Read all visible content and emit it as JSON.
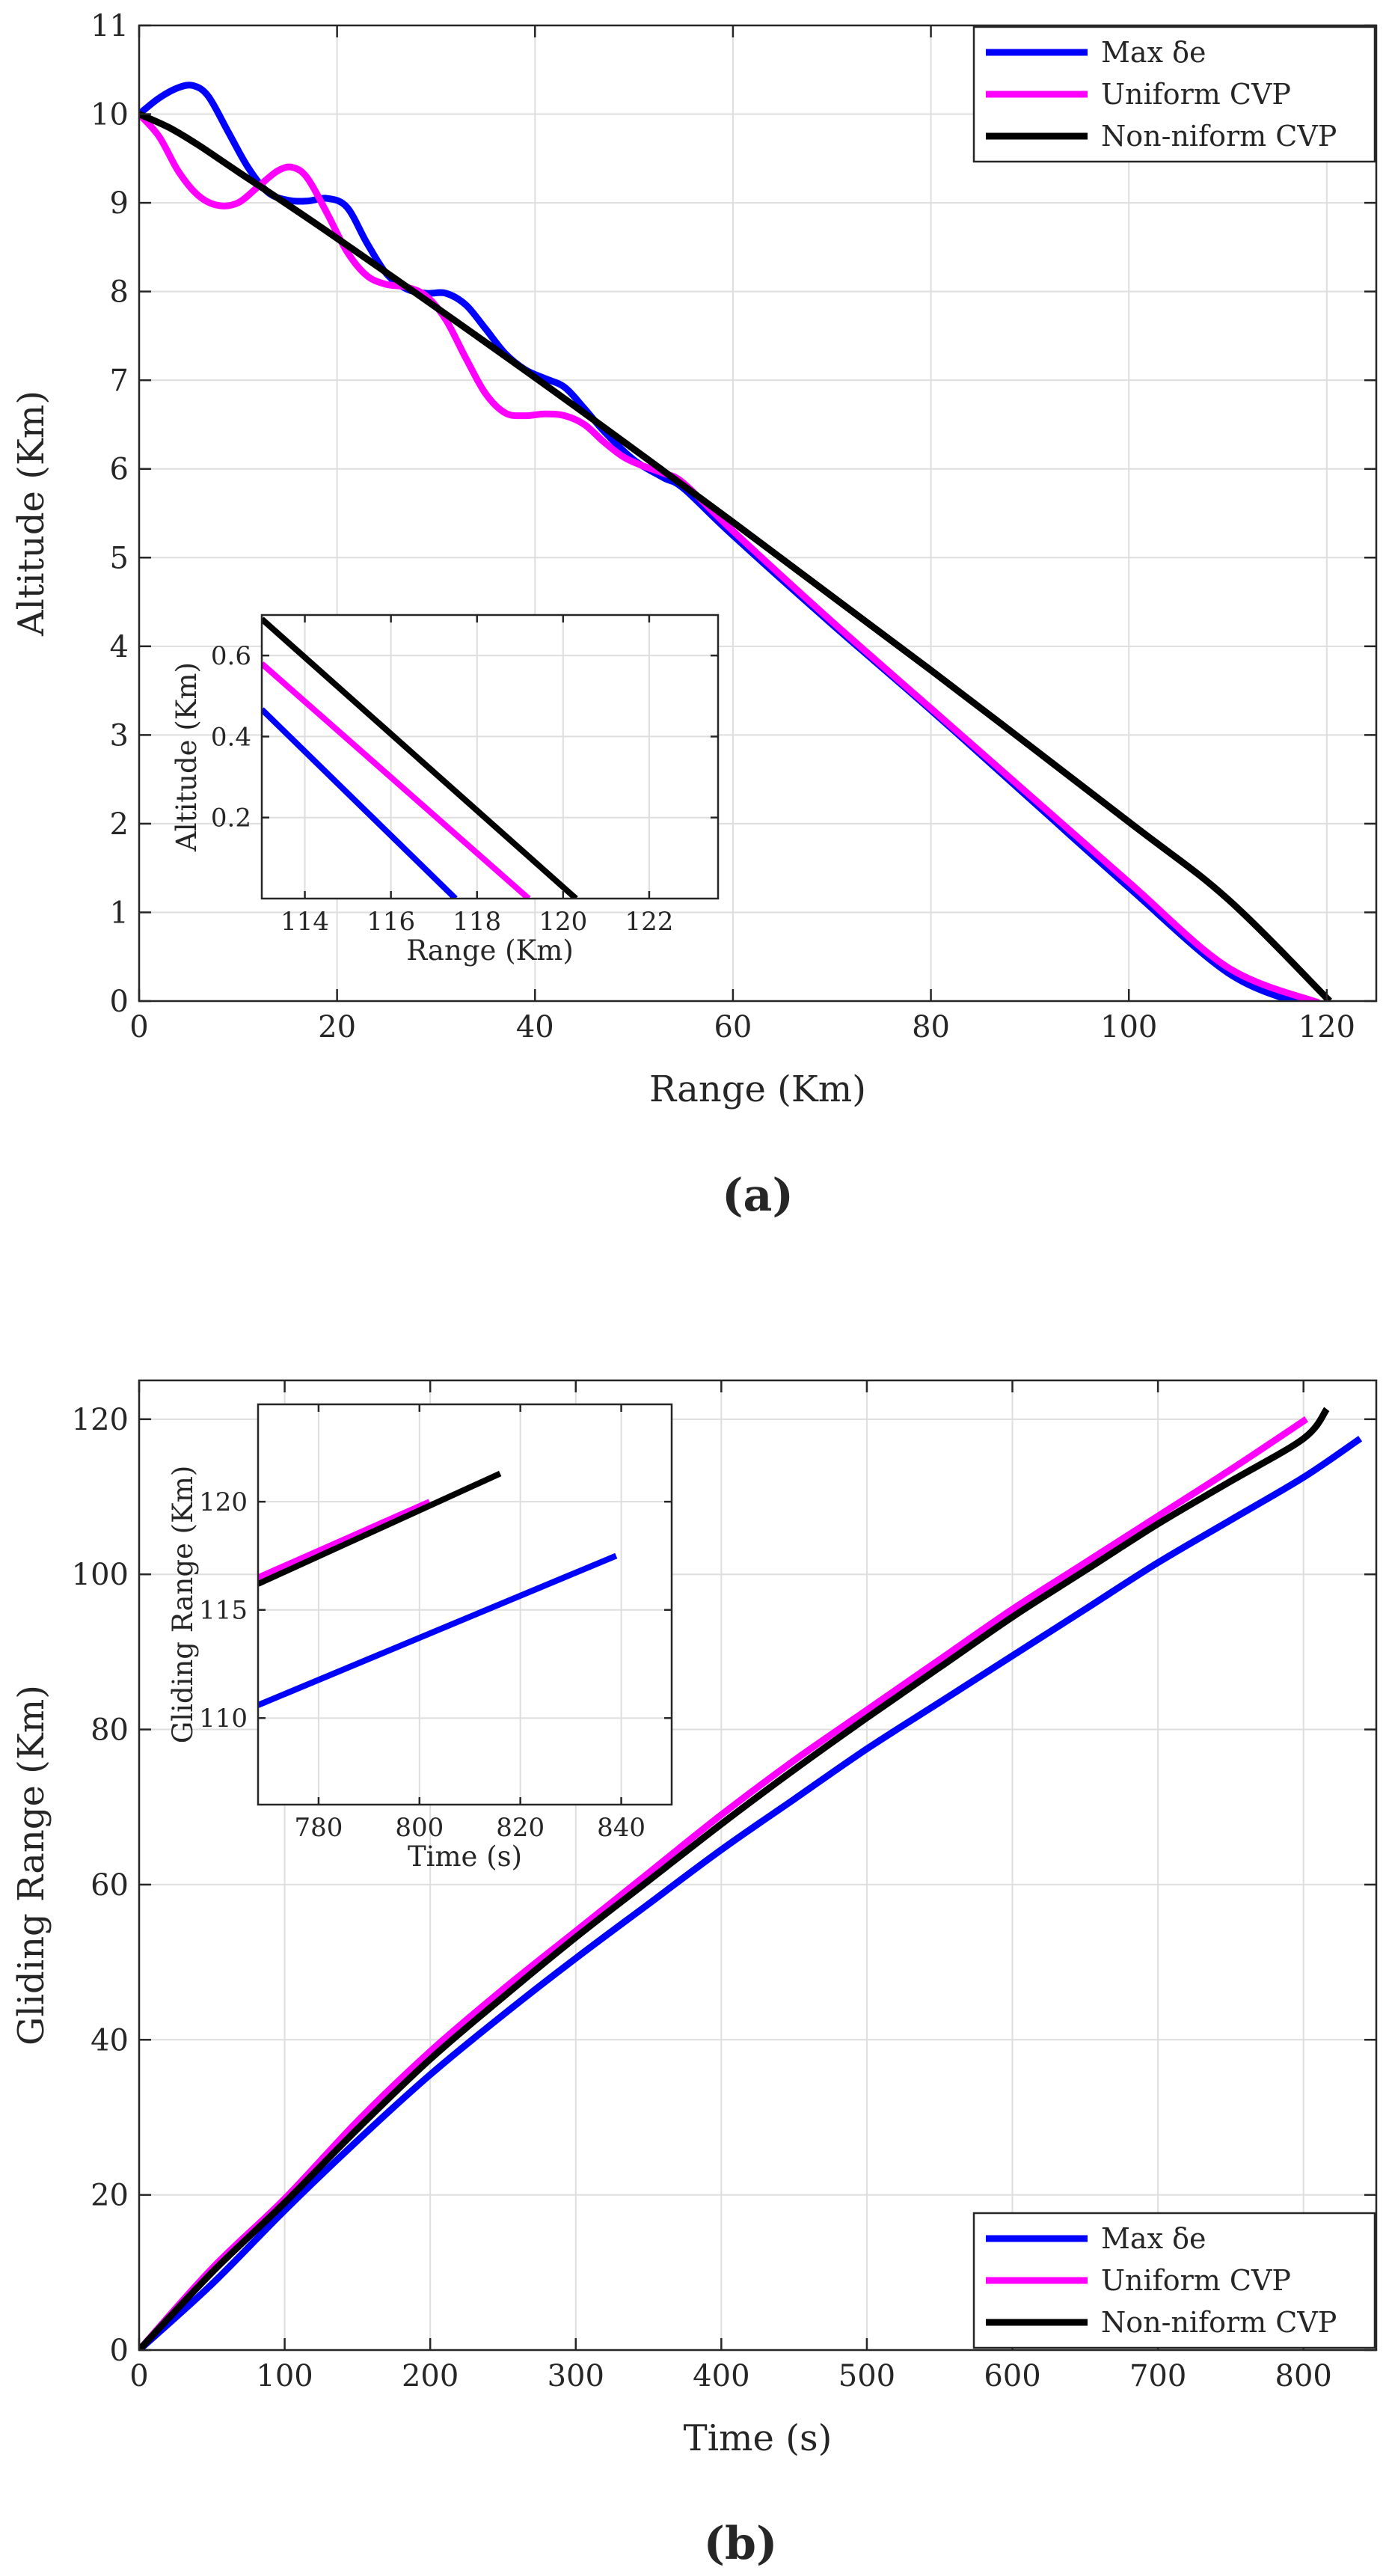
{
  "colors": {
    "series_blue": "#0000ff",
    "series_magenta": "#ff00ff",
    "series_black": "#000000"
  },
  "chart_data": [
    {
      "id": "a",
      "type": "line",
      "caption_label": "(a)",
      "xlabel": "Range (Km)",
      "ylabel": "Altitude (Km)",
      "xlim": [
        0,
        125
      ],
      "ylim": [
        0,
        11
      ],
      "xticks": [
        0,
        20,
        40,
        60,
        80,
        100,
        120
      ],
      "yticks": [
        0,
        1,
        2,
        3,
        4,
        5,
        6,
        7,
        8,
        9,
        10,
        11
      ],
      "grid": true,
      "legend_position": "top-right",
      "legend": [
        "Max δe",
        "Uniform CVP",
        "Non-niform CVP"
      ],
      "series": [
        {
          "name": "Max δe",
          "color": "#0000ff",
          "x": [
            0,
            2,
            4,
            5.5,
            7,
            9,
            11,
            13,
            15,
            17,
            19,
            21,
            23,
            25,
            27,
            29,
            31,
            33,
            35,
            37,
            39,
            41,
            43,
            45,
            47,
            50,
            53,
            55,
            60,
            70,
            80,
            90,
            100,
            110,
            117.5
          ],
          "y": [
            10,
            10.18,
            10.3,
            10.32,
            10.2,
            9.8,
            9.4,
            9.12,
            9.03,
            9.02,
            9.05,
            8.95,
            8.55,
            8.2,
            8.03,
            7.98,
            7.98,
            7.85,
            7.58,
            7.3,
            7.12,
            7.02,
            6.92,
            6.68,
            6.42,
            6.1,
            5.9,
            5.78,
            5.25,
            4.25,
            3.28,
            2.28,
            1.28,
            0.32,
            -0.04
          ]
        },
        {
          "name": "Uniform CVP",
          "color": "#ff00ff",
          "x": [
            0,
            2,
            4,
            6,
            8,
            10,
            12,
            14,
            15.5,
            17,
            19,
            21,
            23,
            25,
            27,
            29,
            31,
            33,
            35,
            37,
            39,
            41,
            43,
            45,
            47,
            49,
            51,
            53,
            55,
            60,
            70,
            80,
            90,
            100,
            110,
            119.2
          ],
          "y": [
            10,
            9.75,
            9.35,
            9.08,
            8.97,
            9.0,
            9.18,
            9.36,
            9.4,
            9.28,
            8.88,
            8.45,
            8.18,
            8.08,
            8.05,
            7.95,
            7.68,
            7.25,
            6.85,
            6.63,
            6.6,
            6.62,
            6.6,
            6.5,
            6.3,
            6.13,
            6.03,
            5.95,
            5.84,
            5.3,
            4.28,
            3.3,
            2.32,
            1.34,
            0.38,
            -0.02
          ]
        },
        {
          "name": "Non-niform CVP",
          "color": "#000000",
          "x": [
            0,
            3,
            6,
            10,
            20,
            40,
            60,
            80,
            100,
            110,
            120.3
          ],
          "y": [
            10,
            9.85,
            9.65,
            9.35,
            8.6,
            7.03,
            5.4,
            3.73,
            2.02,
            1.15,
            0
          ]
        }
      ],
      "inset": {
        "xlabel": "Range (Km)",
        "ylabel": "Altitude (Km)",
        "xlim": [
          113,
          123.6
        ],
        "ylim": [
          0,
          0.7
        ],
        "xticks": [
          114,
          116,
          118,
          120,
          122
        ],
        "yticks": [
          0.2,
          0.4,
          0.6
        ],
        "series": [
          {
            "name": "Max δe",
            "color": "#0000ff",
            "x": [
              113,
              117.5
            ],
            "y": [
              0.467,
              0
            ]
          },
          {
            "name": "Uniform CVP",
            "color": "#ff00ff",
            "x": [
              113,
              119.2
            ],
            "y": [
              0.58,
              0
            ]
          },
          {
            "name": "Non-niform CVP",
            "color": "#000000",
            "x": [
              113,
              120.3
            ],
            "y": [
              0.69,
              0
            ]
          }
        ]
      }
    },
    {
      "id": "b",
      "type": "line",
      "caption_label": "(b)",
      "xlabel": "Time (s)",
      "ylabel": "Gliding Range (Km)",
      "xlim": [
        0,
        850
      ],
      "ylim": [
        0,
        125
      ],
      "xticks": [
        0,
        100,
        200,
        300,
        400,
        500,
        600,
        700,
        800
      ],
      "yticks": [
        0,
        20,
        40,
        60,
        80,
        100,
        120
      ],
      "grid": true,
      "legend_position": "bottom-right",
      "legend": [
        "Max δe",
        "Uniform CVP",
        "Non-niform CVP"
      ],
      "series": [
        {
          "name": "Max δe",
          "color": "#0000ff",
          "x": [
            0,
            50,
            100,
            150,
            200,
            250,
            300,
            350,
            400,
            450,
            500,
            550,
            600,
            650,
            700,
            750,
            800,
            839
          ],
          "y": [
            0,
            8.5,
            18,
            27,
            35.5,
            43.2,
            50.5,
            57.5,
            64.5,
            71,
            77.5,
            83.5,
            89.5,
            95.5,
            101.5,
            107,
            112.5,
            117.5
          ]
        },
        {
          "name": "Uniform CVP",
          "color": "#ff00ff",
          "x": [
            0,
            50,
            100,
            150,
            200,
            250,
            300,
            350,
            400,
            450,
            500,
            550,
            600,
            650,
            700,
            750,
            802
          ],
          "y": [
            0,
            10.5,
            19.5,
            29.5,
            38.5,
            46.5,
            54,
            61.5,
            69,
            76,
            82.5,
            89,
            95.5,
            101.5,
            107.5,
            113.5,
            120
          ]
        },
        {
          "name": "Non-niform CVP",
          "color": "#000000",
          "x": [
            0,
            50,
            100,
            150,
            200,
            250,
            300,
            350,
            400,
            450,
            500,
            550,
            600,
            650,
            700,
            750,
            800,
            816
          ],
          "y": [
            0,
            10,
            19,
            28.5,
            37.5,
            45.5,
            53.2,
            60.5,
            67.8,
            74.8,
            81.5,
            88,
            94.5,
            100.5,
            106.5,
            112,
            117.5,
            121.3
          ]
        }
      ],
      "inset": {
        "xlabel": "Time (s)",
        "ylabel": "Gliding Range (Km)",
        "xlim": [
          768,
          850
        ],
        "ylim": [
          106,
          124.5
        ],
        "xticks": [
          780,
          800,
          820,
          840
        ],
        "yticks": [
          110,
          115,
          120
        ],
        "series": [
          {
            "name": "Max δe",
            "color": "#0000ff",
            "x": [
              768,
              839
            ],
            "y": [
              110.6,
              117.5
            ]
          },
          {
            "name": "Uniform CVP",
            "color": "#ff00ff",
            "x": [
              768,
              802
            ],
            "y": [
              116.5,
              120
            ]
          },
          {
            "name": "Non-niform CVP",
            "color": "#000000",
            "x": [
              768,
              816
            ],
            "y": [
              116.2,
              121.3
            ]
          }
        ]
      }
    }
  ]
}
